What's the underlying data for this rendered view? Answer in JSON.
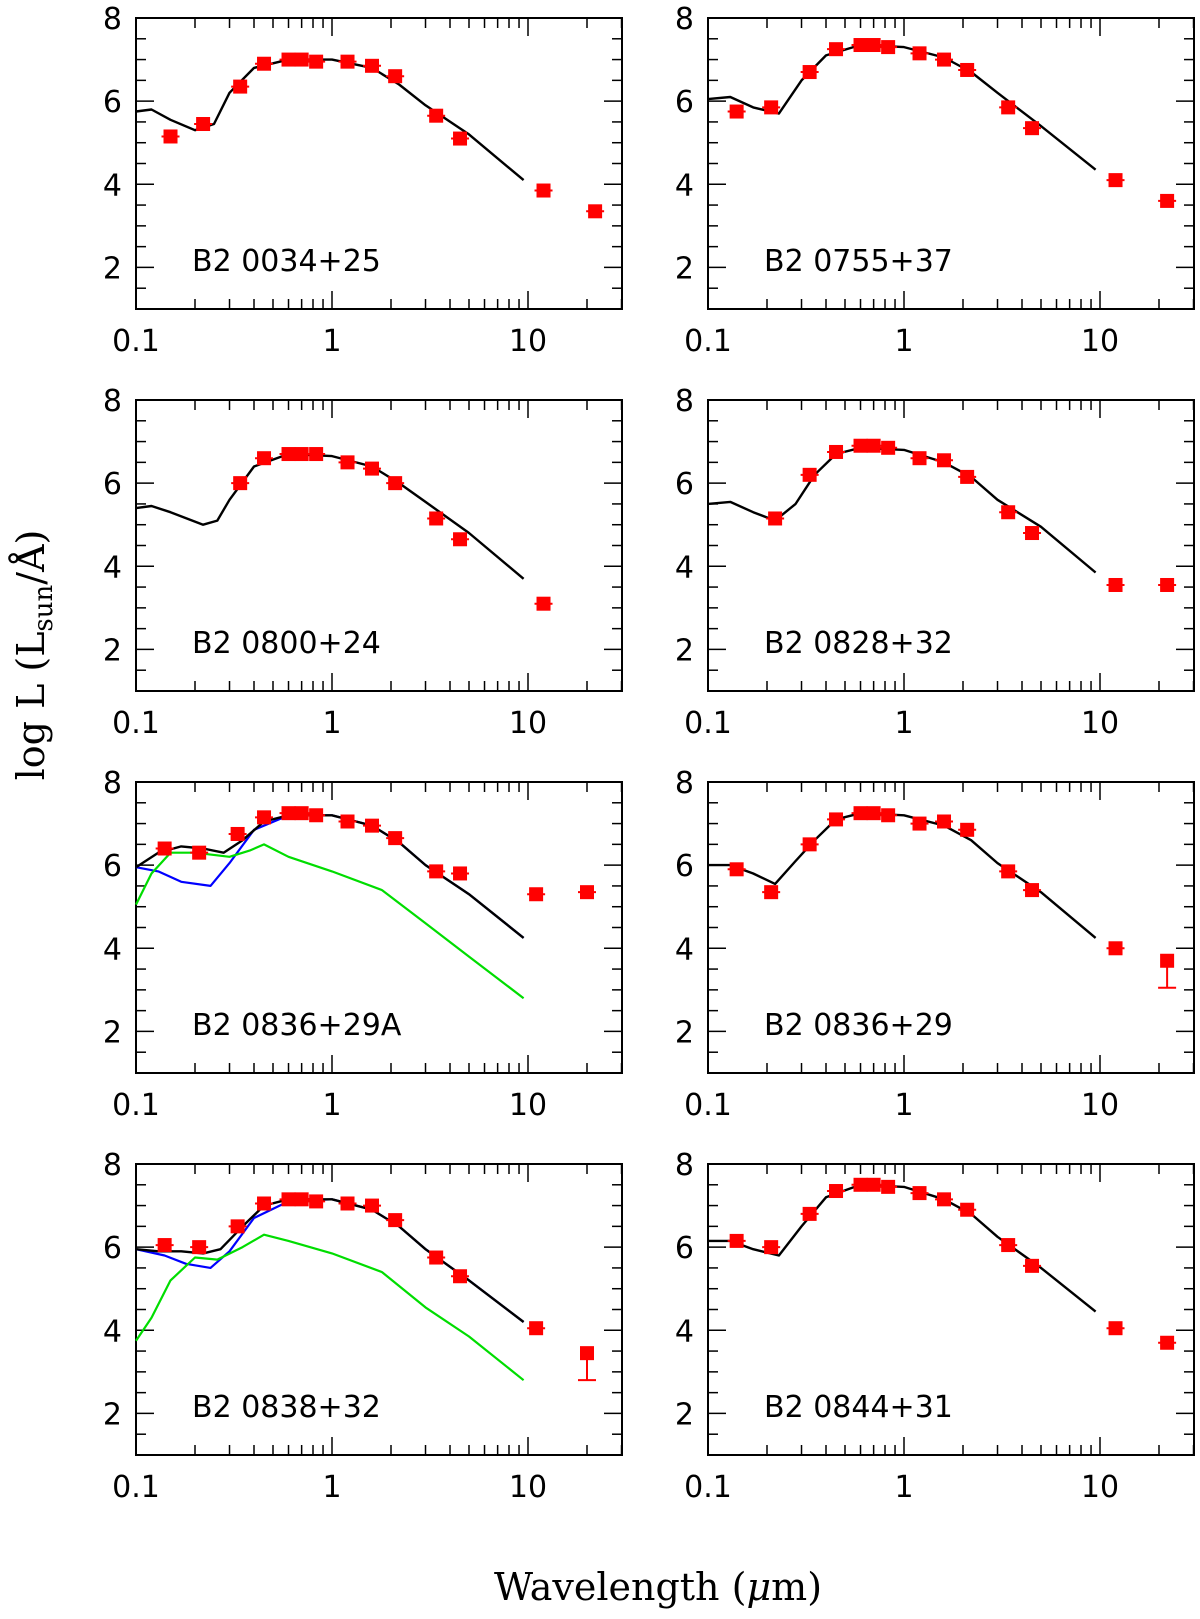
{
  "figure": {
    "xlabel_main": "Wavelength (",
    "xlabel_mu": "μ",
    "xlabel_unit": "m)",
    "ylabel_main": "log L (L",
    "ylabel_sub": "sun",
    "ylabel_unit": "/Å)",
    "colors": {
      "data": "#ff0000",
      "model": "#000000",
      "component_blue": "#0000ff",
      "component_green": "#00dd00"
    }
  },
  "chart_data": [
    {
      "type": "scatter",
      "label": "B2 0034+25",
      "xscale": "log",
      "xlim": [
        0.1,
        30
      ],
      "ylim": [
        1,
        8
      ],
      "xticklabels": [
        "0.1",
        "1",
        "10"
      ],
      "yticklabels": [
        "2",
        "4",
        "6",
        "8"
      ],
      "points": [
        [
          0.15,
          5.15
        ],
        [
          0.22,
          5.45
        ],
        [
          0.34,
          6.35
        ],
        [
          0.45,
          6.9
        ],
        [
          0.6,
          7.0
        ],
        [
          0.7,
          7.0
        ],
        [
          0.83,
          6.95
        ],
        [
          1.2,
          6.95
        ],
        [
          1.6,
          6.85
        ],
        [
          2.1,
          6.6
        ],
        [
          3.4,
          5.65
        ],
        [
          4.5,
          5.1
        ],
        [
          12,
          3.85
        ],
        [
          22,
          3.35
        ]
      ],
      "upper_limits": [],
      "model": [
        [
          0.1,
          5.75
        ],
        [
          0.12,
          5.8
        ],
        [
          0.15,
          5.55
        ],
        [
          0.2,
          5.3
        ],
        [
          0.25,
          5.45
        ],
        [
          0.3,
          6.2
        ],
        [
          0.4,
          6.8
        ],
        [
          0.6,
          7.0
        ],
        [
          1,
          7.0
        ],
        [
          1.6,
          6.8
        ],
        [
          2.2,
          6.4
        ],
        [
          3,
          5.9
        ],
        [
          5,
          5.2
        ],
        [
          9.5,
          4.1
        ]
      ],
      "components": []
    },
    {
      "type": "scatter",
      "label": "B2 0755+37",
      "xscale": "log",
      "xlim": [
        0.1,
        30
      ],
      "ylim": [
        1,
        8
      ],
      "xticklabels": [
        "0.1",
        "1",
        "10"
      ],
      "yticklabels": [
        "2",
        "4",
        "6",
        "8"
      ],
      "points": [
        [
          0.14,
          5.75
        ],
        [
          0.21,
          5.85
        ],
        [
          0.33,
          6.7
        ],
        [
          0.45,
          7.25
        ],
        [
          0.6,
          7.35
        ],
        [
          0.7,
          7.35
        ],
        [
          0.83,
          7.3
        ],
        [
          1.2,
          7.15
        ],
        [
          1.6,
          7.0
        ],
        [
          2.1,
          6.75
        ],
        [
          3.4,
          5.85
        ],
        [
          4.5,
          5.35
        ],
        [
          12,
          4.1
        ],
        [
          22,
          3.6
        ]
      ],
      "upper_limits": [],
      "model": [
        [
          0.1,
          6.05
        ],
        [
          0.13,
          6.1
        ],
        [
          0.17,
          5.85
        ],
        [
          0.23,
          5.7
        ],
        [
          0.3,
          6.5
        ],
        [
          0.4,
          7.1
        ],
        [
          0.6,
          7.35
        ],
        [
          1,
          7.3
        ],
        [
          1.6,
          7.05
        ],
        [
          2.2,
          6.7
        ],
        [
          3,
          6.2
        ],
        [
          5,
          5.4
        ],
        [
          9.5,
          4.35
        ]
      ],
      "components": []
    },
    {
      "type": "scatter",
      "label": "B2 0800+24",
      "xscale": "log",
      "xlim": [
        0.1,
        30
      ],
      "ylim": [
        1,
        8
      ],
      "xticklabels": [
        "0.1",
        "1",
        "10"
      ],
      "yticklabels": [
        "2",
        "4",
        "6",
        "8"
      ],
      "points": [
        [
          0.34,
          6.0
        ],
        [
          0.45,
          6.6
        ],
        [
          0.6,
          6.7
        ],
        [
          0.7,
          6.7
        ],
        [
          0.83,
          6.7
        ],
        [
          1.2,
          6.5
        ],
        [
          1.6,
          6.35
        ],
        [
          2.1,
          6.0
        ],
        [
          3.4,
          5.15
        ],
        [
          4.5,
          4.65
        ],
        [
          12,
          3.1
        ]
      ],
      "upper_limits": [],
      "model": [
        [
          0.1,
          5.4
        ],
        [
          0.12,
          5.45
        ],
        [
          0.15,
          5.3
        ],
        [
          0.22,
          5.0
        ],
        [
          0.26,
          5.1
        ],
        [
          0.3,
          5.6
        ],
        [
          0.4,
          6.4
        ],
        [
          0.6,
          6.7
        ],
        [
          1,
          6.65
        ],
        [
          1.6,
          6.4
        ],
        [
          2.2,
          6.0
        ],
        [
          3,
          5.55
        ],
        [
          5,
          4.8
        ],
        [
          9.5,
          3.7
        ]
      ],
      "components": []
    },
    {
      "type": "scatter",
      "label": "B2 0828+32",
      "xscale": "log",
      "xlim": [
        0.1,
        30
      ],
      "ylim": [
        1,
        8
      ],
      "xticklabels": [
        "0.1",
        "1",
        "10"
      ],
      "yticklabels": [
        "2",
        "4",
        "6",
        "8"
      ],
      "points": [
        [
          0.22,
          5.15
        ],
        [
          0.33,
          6.2
        ],
        [
          0.45,
          6.75
        ],
        [
          0.6,
          6.9
        ],
        [
          0.7,
          6.9
        ],
        [
          0.83,
          6.85
        ],
        [
          1.2,
          6.6
        ],
        [
          1.6,
          6.55
        ],
        [
          2.1,
          6.15
        ],
        [
          3.4,
          5.3
        ],
        [
          4.5,
          4.8
        ],
        [
          12,
          3.55
        ],
        [
          22,
          3.55
        ]
      ],
      "upper_limits": [],
      "model": [
        [
          0.1,
          5.5
        ],
        [
          0.13,
          5.55
        ],
        [
          0.17,
          5.3
        ],
        [
          0.22,
          5.1
        ],
        [
          0.28,
          5.5
        ],
        [
          0.35,
          6.2
        ],
        [
          0.45,
          6.7
        ],
        [
          0.6,
          6.85
        ],
        [
          1,
          6.8
        ],
        [
          1.6,
          6.5
        ],
        [
          2.2,
          6.15
        ],
        [
          3,
          5.6
        ],
        [
          5,
          4.95
        ],
        [
          9.5,
          3.85
        ]
      ],
      "components": []
    },
    {
      "type": "scatter",
      "label": "B2 0836+29A",
      "xscale": "log",
      "xlim": [
        0.1,
        30
      ],
      "ylim": [
        1,
        8
      ],
      "xticklabels": [
        "0.1",
        "1",
        "10"
      ],
      "yticklabels": [
        "2",
        "4",
        "6",
        "8"
      ],
      "points": [
        [
          0.14,
          6.4
        ],
        [
          0.21,
          6.3
        ],
        [
          0.33,
          6.75
        ],
        [
          0.45,
          7.15
        ],
        [
          0.6,
          7.25
        ],
        [
          0.7,
          7.25
        ],
        [
          0.83,
          7.2
        ],
        [
          1.2,
          7.05
        ],
        [
          1.6,
          6.95
        ],
        [
          2.1,
          6.65
        ],
        [
          3.4,
          5.85
        ],
        [
          4.5,
          5.8
        ],
        [
          11,
          5.3
        ],
        [
          20,
          5.35
        ]
      ],
      "upper_limits": [],
      "model": [
        [
          0.1,
          5.95
        ],
        [
          0.13,
          6.3
        ],
        [
          0.17,
          6.45
        ],
        [
          0.22,
          6.4
        ],
        [
          0.28,
          6.3
        ],
        [
          0.35,
          6.6
        ],
        [
          0.45,
          7.05
        ],
        [
          0.6,
          7.2
        ],
        [
          1,
          7.2
        ],
        [
          1.6,
          6.95
        ],
        [
          2.2,
          6.55
        ],
        [
          3,
          6.0
        ],
        [
          5,
          5.3
        ],
        [
          9.5,
          4.25
        ]
      ],
      "components": [
        {
          "color": "#0000ff",
          "points": [
            [
              0.1,
              5.95
            ],
            [
              0.13,
              5.85
            ],
            [
              0.17,
              5.6
            ],
            [
              0.24,
              5.5
            ],
            [
              0.3,
              6.05
            ],
            [
              0.4,
              6.85
            ],
            [
              0.6,
              7.2
            ],
            [
              1,
              7.2
            ],
            [
              1.6,
              6.95
            ],
            [
              2.2,
              6.55
            ],
            [
              3,
              6.0
            ],
            [
              5,
              5.3
            ],
            [
              9.5,
              4.25
            ]
          ]
        },
        {
          "color": "#00dd00",
          "points": [
            [
              0.1,
              5.05
            ],
            [
              0.12,
              5.8
            ],
            [
              0.15,
              6.3
            ],
            [
              0.2,
              6.3
            ],
            [
              0.3,
              6.2
            ],
            [
              0.38,
              6.35
            ],
            [
              0.45,
              6.5
            ],
            [
              0.6,
              6.2
            ],
            [
              1,
              5.85
            ],
            [
              1.8,
              5.4
            ],
            [
              3,
              4.6
            ],
            [
              5,
              3.8
            ],
            [
              9.5,
              2.8
            ]
          ]
        }
      ]
    },
    {
      "type": "scatter",
      "label": "B2 0836+29",
      "xscale": "log",
      "xlim": [
        0.1,
        30
      ],
      "ylim": [
        1,
        8
      ],
      "xticklabels": [
        "0.1",
        "1",
        "10"
      ],
      "yticklabels": [
        "2",
        "4",
        "6",
        "8"
      ],
      "points": [
        [
          0.14,
          5.9
        ],
        [
          0.21,
          5.35
        ],
        [
          0.33,
          6.5
        ],
        [
          0.45,
          7.1
        ],
        [
          0.6,
          7.25
        ],
        [
          0.7,
          7.25
        ],
        [
          0.83,
          7.2
        ],
        [
          1.2,
          7.0
        ],
        [
          1.6,
          7.05
        ],
        [
          2.1,
          6.85
        ],
        [
          3.4,
          5.85
        ],
        [
          4.5,
          5.4
        ],
        [
          12,
          4.0
        ]
      ],
      "upper_limits": [
        [
          22,
          3.7
        ]
      ],
      "model": [
        [
          0.1,
          6.0
        ],
        [
          0.13,
          6.0
        ],
        [
          0.17,
          5.8
        ],
        [
          0.22,
          5.55
        ],
        [
          0.28,
          6.1
        ],
        [
          0.35,
          6.6
        ],
        [
          0.45,
          7.1
        ],
        [
          0.6,
          7.25
        ],
        [
          1,
          7.2
        ],
        [
          1.6,
          6.95
        ],
        [
          2.2,
          6.6
        ],
        [
          3,
          6.05
        ],
        [
          5,
          5.35
        ],
        [
          9.5,
          4.25
        ]
      ],
      "components": []
    },
    {
      "type": "scatter",
      "label": "B2 0838+32",
      "xscale": "log",
      "xlim": [
        0.1,
        30
      ],
      "ylim": [
        1,
        8
      ],
      "xticklabels": [
        "0.1",
        "1",
        "10"
      ],
      "yticklabels": [
        "2",
        "4",
        "6",
        "8"
      ],
      "points": [
        [
          0.14,
          6.05
        ],
        [
          0.21,
          6.0
        ],
        [
          0.33,
          6.5
        ],
        [
          0.45,
          7.05
        ],
        [
          0.6,
          7.15
        ],
        [
          0.7,
          7.15
        ],
        [
          0.83,
          7.1
        ],
        [
          1.2,
          7.05
        ],
        [
          1.6,
          7.0
        ],
        [
          2.1,
          6.65
        ],
        [
          3.4,
          5.75
        ],
        [
          4.5,
          5.3
        ],
        [
          11,
          4.05
        ]
      ],
      "upper_limits": [
        [
          20,
          3.45
        ]
      ],
      "model": [
        [
          0.1,
          5.95
        ],
        [
          0.13,
          5.9
        ],
        [
          0.17,
          5.9
        ],
        [
          0.22,
          5.85
        ],
        [
          0.27,
          5.95
        ],
        [
          0.35,
          6.5
        ],
        [
          0.45,
          7.0
        ],
        [
          0.6,
          7.15
        ],
        [
          1,
          7.15
        ],
        [
          1.6,
          6.9
        ],
        [
          2.2,
          6.5
        ],
        [
          3,
          5.95
        ],
        [
          5,
          5.2
        ],
        [
          9.5,
          4.2
        ]
      ],
      "components": [
        {
          "color": "#0000ff",
          "points": [
            [
              0.1,
              5.95
            ],
            [
              0.14,
              5.8
            ],
            [
              0.18,
              5.6
            ],
            [
              0.24,
              5.5
            ],
            [
              0.3,
              5.9
            ],
            [
              0.4,
              6.7
            ],
            [
              0.6,
              7.1
            ],
            [
              1,
              7.15
            ],
            [
              1.6,
              6.9
            ],
            [
              2.2,
              6.5
            ],
            [
              3,
              5.95
            ],
            [
              5,
              5.2
            ],
            [
              9.5,
              4.2
            ]
          ]
        },
        {
          "color": "#00dd00",
          "points": [
            [
              0.1,
              3.75
            ],
            [
              0.12,
              4.3
            ],
            [
              0.15,
              5.2
            ],
            [
              0.2,
              5.75
            ],
            [
              0.26,
              5.7
            ],
            [
              0.35,
              6.0
            ],
            [
              0.45,
              6.3
            ],
            [
              0.6,
              6.15
            ],
            [
              1,
              5.85
            ],
            [
              1.8,
              5.4
            ],
            [
              3,
              4.55
            ],
            [
              5,
              3.85
            ],
            [
              9.5,
              2.8
            ]
          ]
        }
      ]
    },
    {
      "type": "scatter",
      "label": "B2 0844+31",
      "xscale": "log",
      "xlim": [
        0.1,
        30
      ],
      "ylim": [
        1,
        8
      ],
      "xticklabels": [
        "0.1",
        "1",
        "10"
      ],
      "yticklabels": [
        "2",
        "4",
        "6",
        "8"
      ],
      "points": [
        [
          0.14,
          6.15
        ],
        [
          0.21,
          6.0
        ],
        [
          0.33,
          6.8
        ],
        [
          0.45,
          7.35
        ],
        [
          0.6,
          7.5
        ],
        [
          0.7,
          7.5
        ],
        [
          0.83,
          7.45
        ],
        [
          1.2,
          7.3
        ],
        [
          1.6,
          7.15
        ],
        [
          2.1,
          6.9
        ],
        [
          3.4,
          6.05
        ],
        [
          4.5,
          5.55
        ],
        [
          12,
          4.05
        ],
        [
          22,
          3.7
        ]
      ],
      "upper_limits": [],
      "model": [
        [
          0.1,
          6.15
        ],
        [
          0.13,
          6.15
        ],
        [
          0.17,
          5.95
        ],
        [
          0.23,
          5.8
        ],
        [
          0.3,
          6.5
        ],
        [
          0.4,
          7.2
        ],
        [
          0.6,
          7.5
        ],
        [
          1,
          7.45
        ],
        [
          1.6,
          7.15
        ],
        [
          2.2,
          6.8
        ],
        [
          3,
          6.25
        ],
        [
          5,
          5.5
        ],
        [
          9.5,
          4.45
        ]
      ],
      "components": []
    }
  ]
}
